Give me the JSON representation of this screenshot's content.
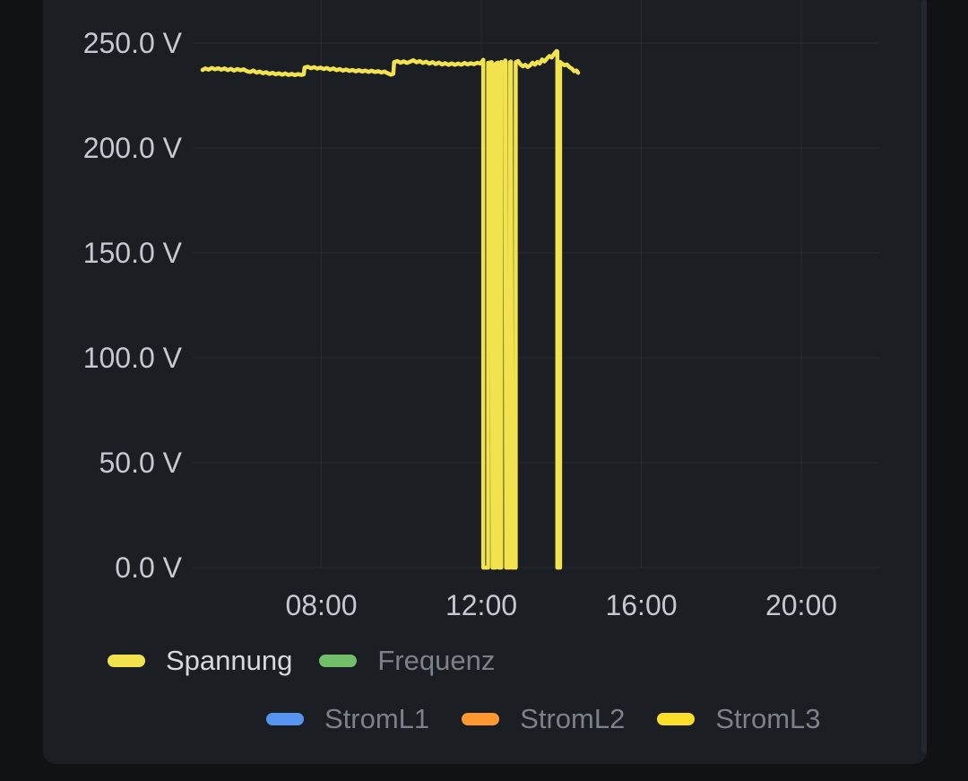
{
  "panel": {
    "background": "#1b1e23",
    "page_background": "#101216"
  },
  "chart_data": {
    "type": "line",
    "title": "",
    "xlabel": "",
    "ylabel": "",
    "y_unit": "V",
    "grid": true,
    "legend_position": "bottom",
    "y_axis": {
      "range": [
        0,
        270
      ],
      "ticks": [
        {
          "value": 0,
          "label": "0.0 V"
        },
        {
          "value": 50,
          "label": "50.0 V"
        },
        {
          "value": 100,
          "label": "100.0 V"
        },
        {
          "value": 150,
          "label": "150.0 V"
        },
        {
          "value": 200,
          "label": "200.0 V"
        },
        {
          "value": 250,
          "label": "250.0 V"
        }
      ]
    },
    "x_axis": {
      "range_hours": [
        4.74,
        21.97
      ],
      "ticks": [
        {
          "hour": 8,
          "label": "08:00"
        },
        {
          "hour": 12,
          "label": "12:00"
        },
        {
          "hour": 16,
          "label": "16:00"
        },
        {
          "hour": 20,
          "label": "20:00"
        }
      ]
    },
    "series": [
      {
        "name": "Spannung",
        "color": "#f2e24d",
        "visible": true,
        "points": [
          [
            5.03,
            237.2
          ],
          [
            5.1,
            237.9
          ],
          [
            5.18,
            237.3
          ],
          [
            5.26,
            238.1
          ],
          [
            5.34,
            237.5
          ],
          [
            5.42,
            238.0
          ],
          [
            5.5,
            237.3
          ],
          [
            5.58,
            237.9
          ],
          [
            5.66,
            237.1
          ],
          [
            5.74,
            237.7
          ],
          [
            5.82,
            236.9
          ],
          [
            5.9,
            237.6
          ],
          [
            5.98,
            237.0
          ],
          [
            6.06,
            237.5
          ],
          [
            6.14,
            236.6
          ],
          [
            6.22,
            236.2
          ],
          [
            6.3,
            236.9
          ],
          [
            6.38,
            235.9
          ],
          [
            6.46,
            236.4
          ],
          [
            6.54,
            235.6
          ],
          [
            6.62,
            236.1
          ],
          [
            6.7,
            235.3
          ],
          [
            6.78,
            235.8
          ],
          [
            6.86,
            235.1
          ],
          [
            6.94,
            235.6
          ],
          [
            7.02,
            234.9
          ],
          [
            7.1,
            235.5
          ],
          [
            7.18,
            234.8
          ],
          [
            7.26,
            235.3
          ],
          [
            7.34,
            234.7
          ],
          [
            7.42,
            235.2
          ],
          [
            7.5,
            234.8
          ],
          [
            7.56,
            235.1
          ],
          [
            7.58,
            238.3
          ],
          [
            7.66,
            238.7
          ],
          [
            7.74,
            238.0
          ],
          [
            7.82,
            238.5
          ],
          [
            7.9,
            237.8
          ],
          [
            7.98,
            238.3
          ],
          [
            8.06,
            237.6
          ],
          [
            8.14,
            238.1
          ],
          [
            8.22,
            237.3
          ],
          [
            8.3,
            237.9
          ],
          [
            8.38,
            237.1
          ],
          [
            8.46,
            237.6
          ],
          [
            8.54,
            236.9
          ],
          [
            8.62,
            237.4
          ],
          [
            8.7,
            236.7
          ],
          [
            8.78,
            237.2
          ],
          [
            8.86,
            236.5
          ],
          [
            8.94,
            237.1
          ],
          [
            9.02,
            236.4
          ],
          [
            9.1,
            236.9
          ],
          [
            9.18,
            236.3
          ],
          [
            9.26,
            236.8
          ],
          [
            9.34,
            236.2
          ],
          [
            9.42,
            236.6
          ],
          [
            9.5,
            236.0
          ],
          [
            9.58,
            236.4
          ],
          [
            9.66,
            235.6
          ],
          [
            9.74,
            234.9
          ],
          [
            9.8,
            235.3
          ],
          [
            9.82,
            240.9
          ],
          [
            9.9,
            241.4
          ],
          [
            9.98,
            240.6
          ],
          [
            10.06,
            241.3
          ],
          [
            10.14,
            240.5
          ],
          [
            10.22,
            241.1
          ],
          [
            10.3,
            241.8
          ],
          [
            10.38,
            240.8
          ],
          [
            10.46,
            241.4
          ],
          [
            10.54,
            240.5
          ],
          [
            10.62,
            241.1
          ],
          [
            10.7,
            240.2
          ],
          [
            10.78,
            240.9
          ],
          [
            10.86,
            240.0
          ],
          [
            10.94,
            240.7
          ],
          [
            11.02,
            239.8
          ],
          [
            11.1,
            240.4
          ],
          [
            11.18,
            239.6
          ],
          [
            11.26,
            240.3
          ],
          [
            11.34,
            239.6
          ],
          [
            11.42,
            240.2
          ],
          [
            11.5,
            239.7
          ],
          [
            11.58,
            240.5
          ],
          [
            11.66,
            239.8
          ],
          [
            11.74,
            240.4
          ],
          [
            11.82,
            239.9
          ],
          [
            11.9,
            240.6
          ],
          [
            11.98,
            240.2
          ],
          [
            12.03,
            241.4
          ],
          [
            12.05,
            242.0
          ],
          [
            12.05,
            0
          ],
          [
            12.17,
            0
          ],
          [
            12.17,
            240.5
          ],
          [
            12.26,
            240.9
          ],
          [
            12.28,
            0
          ],
          [
            12.36,
            0
          ],
          [
            12.36,
            240.2
          ],
          [
            12.42,
            240.7
          ],
          [
            12.44,
            0
          ],
          [
            12.5,
            0
          ],
          [
            12.5,
            241.0
          ],
          [
            12.56,
            240.4
          ],
          [
            12.6,
            241.7
          ],
          [
            12.62,
            0
          ],
          [
            12.71,
            0
          ],
          [
            12.71,
            240.8
          ],
          [
            12.74,
            241.2
          ],
          [
            12.77,
            0
          ],
          [
            12.86,
            0
          ],
          [
            12.86,
            240.9
          ],
          [
            12.92,
            241.4
          ],
          [
            12.98,
            239.8
          ],
          [
            13.04,
            238.9
          ],
          [
            13.1,
            239.6
          ],
          [
            13.16,
            238.6
          ],
          [
            13.22,
            239.3
          ],
          [
            13.28,
            240.6
          ],
          [
            13.34,
            239.7
          ],
          [
            13.4,
            241.0
          ],
          [
            13.46,
            240.2
          ],
          [
            13.52,
            242.2
          ],
          [
            13.58,
            241.2
          ],
          [
            13.64,
            242.6
          ],
          [
            13.7,
            243.8
          ],
          [
            13.76,
            243.1
          ],
          [
            13.82,
            244.8
          ],
          [
            13.88,
            246.2
          ],
          [
            13.9,
            246.0
          ],
          [
            13.9,
            0
          ],
          [
            13.97,
            0
          ],
          [
            13.97,
            241.0
          ],
          [
            14.02,
            240.2
          ],
          [
            14.08,
            239.4
          ],
          [
            14.14,
            239.8
          ],
          [
            14.2,
            238.6
          ],
          [
            14.26,
            237.8
          ],
          [
            14.32,
            236.6
          ],
          [
            14.38,
            236.9
          ],
          [
            14.42,
            235.8
          ]
        ]
      },
      {
        "name": "Frequenz",
        "color": "#73bf69",
        "visible": false,
        "points": []
      },
      {
        "name": "StromL1",
        "color": "#5794f2",
        "visible": false,
        "points": []
      },
      {
        "name": "StromL2",
        "color": "#ff9830",
        "visible": false,
        "points": []
      },
      {
        "name": "StromL3",
        "color": "#fade2a",
        "visible": false,
        "points": []
      }
    ]
  },
  "legend": {
    "row1": [
      {
        "label": "Spannung",
        "color": "#f2e24d",
        "label_color": "#d8d9df",
        "active": true
      },
      {
        "label": "Frequenz",
        "color": "#73bf69",
        "label_color": "#7c828b",
        "active": false
      }
    ],
    "row2": [
      {
        "label": "StromL1",
        "color": "#5794f2",
        "label_color": "#7c828b",
        "active": false
      },
      {
        "label": "StromL2",
        "color": "#ff9830",
        "label_color": "#7c828b",
        "active": false
      },
      {
        "label": "StromL3",
        "color": "#fade2a",
        "label_color": "#7c828b",
        "active": false
      }
    ]
  }
}
